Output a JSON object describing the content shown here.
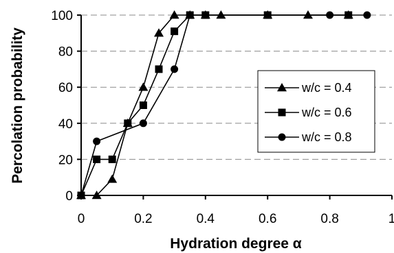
{
  "chart_data": {
    "type": "line",
    "xlabel": "Hydration degree α",
    "ylabel": "Percolation probability",
    "xlim": [
      0,
      1
    ],
    "ylim": [
      0,
      100
    ],
    "x_ticks": [
      "0",
      "0.2",
      "0.4",
      "0.6",
      "0.8",
      "1"
    ],
    "y_ticks": [
      "0",
      "20",
      "40",
      "60",
      "80",
      "100"
    ],
    "grid": "horizontal dashed",
    "legend_position": "right",
    "series": [
      {
        "name": "w/c = 0.4",
        "marker": "triangle",
        "points": [
          [
            0,
            0
          ],
          [
            0.05,
            0
          ],
          [
            0.1,
            9
          ],
          [
            0.15,
            40
          ],
          [
            0.2,
            60
          ],
          [
            0.25,
            90
          ],
          [
            0.3,
            100
          ],
          [
            0.35,
            100
          ],
          [
            0.4,
            100
          ],
          [
            0.45,
            100
          ],
          [
            0.6,
            100
          ],
          [
            0.73,
            100
          ],
          [
            0.86,
            100
          ]
        ]
      },
      {
        "name": "w/c = 0.6",
        "marker": "square",
        "points": [
          [
            0,
            0
          ],
          [
            0.05,
            20
          ],
          [
            0.1,
            20
          ],
          [
            0.15,
            40
          ],
          [
            0.2,
            50
          ],
          [
            0.25,
            70
          ],
          [
            0.3,
            91
          ],
          [
            0.35,
            100
          ],
          [
            0.4,
            100
          ],
          [
            0.6,
            100
          ],
          [
            0.86,
            100
          ]
        ]
      },
      {
        "name": "w/c = 0.8",
        "marker": "circle",
        "points": [
          [
            0,
            0
          ],
          [
            0.05,
            30
          ],
          [
            0.2,
            40
          ],
          [
            0.3,
            70
          ],
          [
            0.35,
            100
          ],
          [
            0.8,
            100
          ],
          [
            0.92,
            100
          ]
        ]
      }
    ]
  }
}
